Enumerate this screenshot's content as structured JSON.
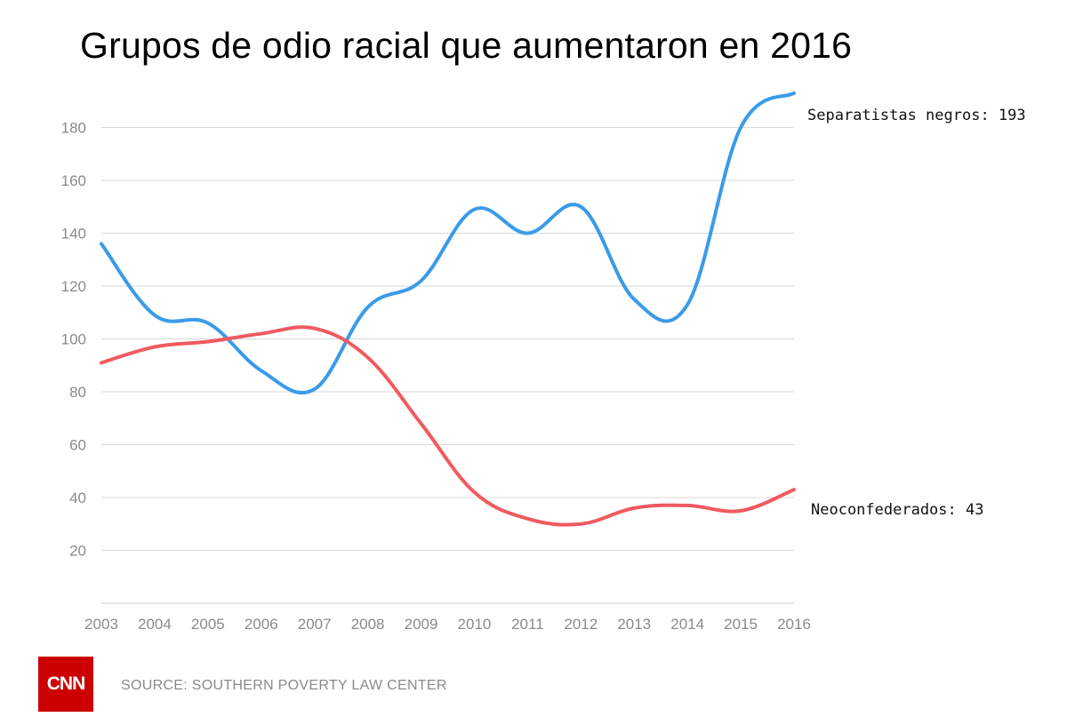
{
  "chart_data": {
    "type": "line",
    "title": "Grupos de odio racial que aumentaron en 2016",
    "xlabel": "",
    "ylabel": "",
    "x": [
      2003,
      2004,
      2005,
      2006,
      2007,
      2008,
      2009,
      2010,
      2011,
      2012,
      2013,
      2014,
      2015,
      2016
    ],
    "x_tick_labels": [
      "2003",
      "2004",
      "2005",
      "2006",
      "2007",
      "2008",
      "2009",
      "2010",
      "2011",
      "2012",
      "2013",
      "2014",
      "2015",
      "2016"
    ],
    "y_ticks": [
      20,
      40,
      60,
      80,
      100,
      120,
      140,
      160,
      180
    ],
    "y_tick_labels": [
      "20",
      "40",
      "60",
      "80",
      "100",
      "120",
      "140",
      "160",
      "180"
    ],
    "ylim": [
      0,
      193
    ],
    "grid": true,
    "series": [
      {
        "name": "Separatistas negros",
        "label": "Separatistas negros: 193",
        "color": "#3a9be8",
        "values": [
          136,
          109,
          106,
          88,
          81,
          112,
          122,
          149,
          140,
          150,
          115,
          113,
          180,
          193
        ]
      },
      {
        "name": "Neoconfederados",
        "label": "Neoconfederados: 43",
        "color": "#f05a5f",
        "values": [
          91,
          97,
          99,
          102,
          104,
          93,
          68,
          42,
          32,
          30,
          36,
          37,
          35,
          43
        ]
      }
    ]
  },
  "footer": {
    "logo_text": "CNN",
    "source": "SOURCE: SOUTHERN POVERTY LAW CENTER"
  }
}
